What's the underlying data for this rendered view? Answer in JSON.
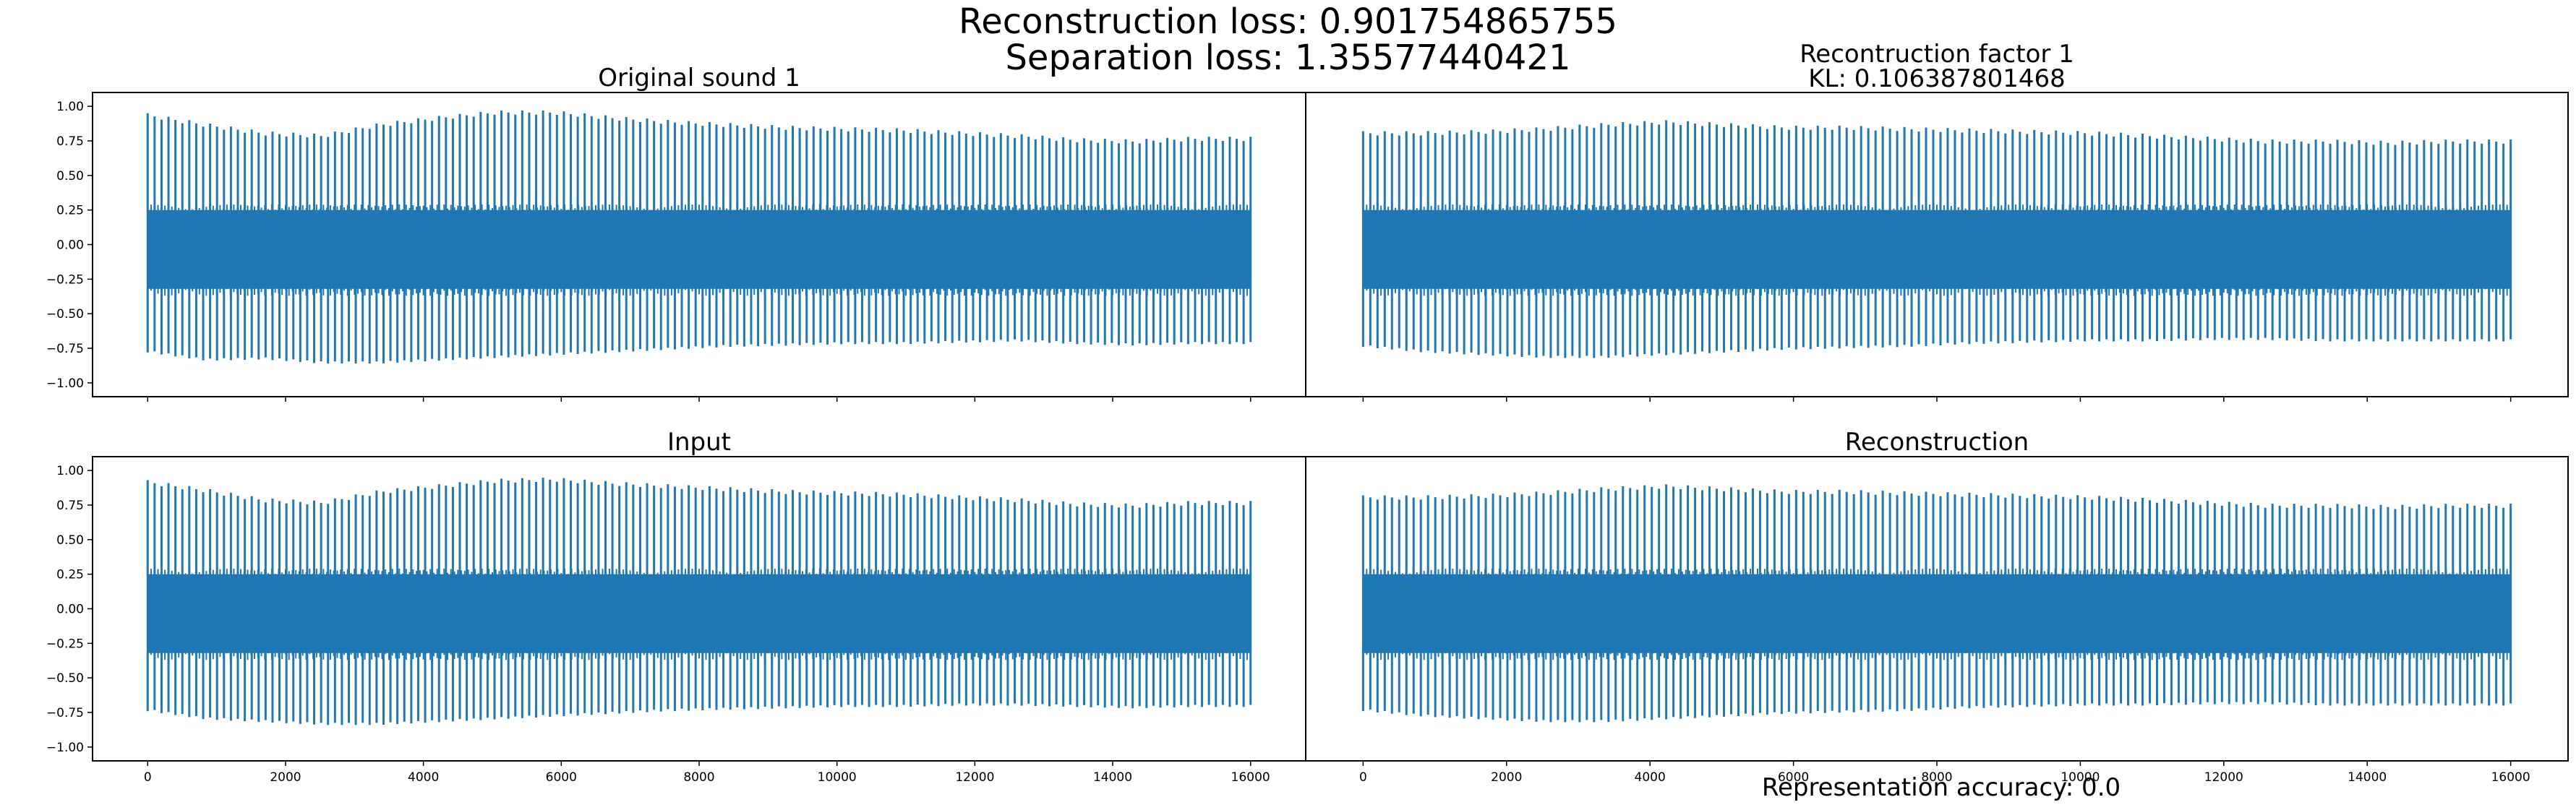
{
  "figure": {
    "suptitle_line1": "Reconstruction loss: 0.901754865755",
    "suptitle_line2": "Separation loss: 1.35577440421",
    "footer": "Representation accuracy: 0.0"
  },
  "chart_data": [
    {
      "type": "line",
      "title": "Original sound 1",
      "xlim": [
        -800,
        16800
      ],
      "ylim": [
        -1.1,
        1.1
      ],
      "x_ticks": [],
      "y_ticks": [
        1.0,
        0.75,
        0.5,
        0.25,
        0.0,
        -0.25,
        -0.5,
        -0.75,
        -1.0
      ],
      "y_tick_labels": [
        "1.00",
        "0.75",
        "0.50",
        "0.25",
        "0.00",
        "−0.25",
        "−0.50",
        "−0.75",
        "−1.00"
      ],
      "series_color": "#1f77b4",
      "waveform": {
        "x_start": 0,
        "x_end": 16000,
        "n_spikes": 160,
        "peak_profile": [
          0.95,
          0.88,
          0.82,
          0.8,
          0.88,
          0.93,
          0.97,
          0.97,
          0.93,
          0.9,
          0.88,
          0.86,
          0.85,
          0.84,
          0.82,
          0.8,
          0.77,
          0.76,
          0.78,
          0.78
        ],
        "trough_profile": [
          -0.78,
          -0.84,
          -0.83,
          -0.86,
          -0.86,
          -0.84,
          -0.82,
          -0.8,
          -0.78,
          -0.76,
          -0.74,
          -0.73,
          -0.72,
          -0.72,
          -0.71,
          -0.7,
          -0.72,
          -0.73,
          -0.72,
          -0.72
        ],
        "body_upper": 0.25,
        "body_lower": -0.32
      }
    },
    {
      "type": "line",
      "title": "Recontruction factor 1",
      "subtitle": "KL: 0.106387801468",
      "xlim": [
        -800,
        16800
      ],
      "ylim": [
        -1.1,
        1.1
      ],
      "x_ticks": [],
      "y_ticks": [],
      "series_color": "#1f77b4",
      "waveform": {
        "x_start": 0,
        "x_end": 16000,
        "n_spikes": 160,
        "peak_profile": [
          0.82,
          0.82,
          0.83,
          0.85,
          0.88,
          0.9,
          0.88,
          0.86,
          0.86,
          0.85,
          0.84,
          0.83,
          0.82,
          0.8,
          0.78,
          0.76,
          0.76,
          0.75,
          0.76,
          0.76
        ],
        "trough_profile": [
          -0.74,
          -0.78,
          -0.8,
          -0.82,
          -0.82,
          -0.8,
          -0.78,
          -0.76,
          -0.75,
          -0.74,
          -0.72,
          -0.71,
          -0.7,
          -0.7,
          -0.69,
          -0.69,
          -0.7,
          -0.7,
          -0.7,
          -0.7
        ],
        "body_upper": 0.25,
        "body_lower": -0.32
      }
    },
    {
      "type": "line",
      "title": "Input",
      "xlim": [
        -800,
        16800
      ],
      "ylim": [
        -1.1,
        1.1
      ],
      "x_ticks": [
        0,
        2000,
        4000,
        6000,
        8000,
        10000,
        12000,
        14000,
        16000
      ],
      "y_ticks": [
        1.0,
        0.75,
        0.5,
        0.25,
        0.0,
        -0.25,
        -0.5,
        -0.75,
        -1.0
      ],
      "y_tick_labels": [
        "1.00",
        "0.75",
        "0.50",
        "0.25",
        "0.00",
        "−0.25",
        "−0.50",
        "−0.75",
        "−1.00"
      ],
      "series_color": "#1f77b4",
      "waveform": {
        "x_start": 0,
        "x_end": 16000,
        "n_spikes": 160,
        "peak_profile": [
          0.93,
          0.87,
          0.8,
          0.78,
          0.86,
          0.9,
          0.94,
          0.95,
          0.92,
          0.9,
          0.88,
          0.86,
          0.85,
          0.84,
          0.82,
          0.8,
          0.77,
          0.76,
          0.78,
          0.78
        ],
        "trough_profile": [
          -0.74,
          -0.8,
          -0.82,
          -0.84,
          -0.84,
          -0.82,
          -0.8,
          -0.78,
          -0.76,
          -0.74,
          -0.73,
          -0.72,
          -0.71,
          -0.71,
          -0.7,
          -0.7,
          -0.71,
          -0.72,
          -0.71,
          -0.71
        ],
        "body_upper": 0.25,
        "body_lower": -0.32
      }
    },
    {
      "type": "line",
      "title": "Reconstruction",
      "xlim": [
        -800,
        16800
      ],
      "ylim": [
        -1.1,
        1.1
      ],
      "x_ticks": [
        0,
        2000,
        4000,
        6000,
        8000,
        10000,
        12000,
        14000,
        16000
      ],
      "y_ticks": [],
      "series_color": "#1f77b4",
      "waveform": {
        "x_start": 0,
        "x_end": 16000,
        "n_spikes": 160,
        "peak_profile": [
          0.82,
          0.82,
          0.83,
          0.85,
          0.88,
          0.9,
          0.88,
          0.86,
          0.86,
          0.85,
          0.84,
          0.83,
          0.82,
          0.8,
          0.78,
          0.76,
          0.76,
          0.75,
          0.76,
          0.76
        ],
        "trough_profile": [
          -0.74,
          -0.78,
          -0.8,
          -0.82,
          -0.82,
          -0.8,
          -0.78,
          -0.76,
          -0.75,
          -0.74,
          -0.72,
          -0.71,
          -0.7,
          -0.7,
          -0.69,
          -0.69,
          -0.7,
          -0.7,
          -0.7,
          -0.7
        ],
        "body_upper": 0.25,
        "body_lower": -0.32
      }
    }
  ]
}
